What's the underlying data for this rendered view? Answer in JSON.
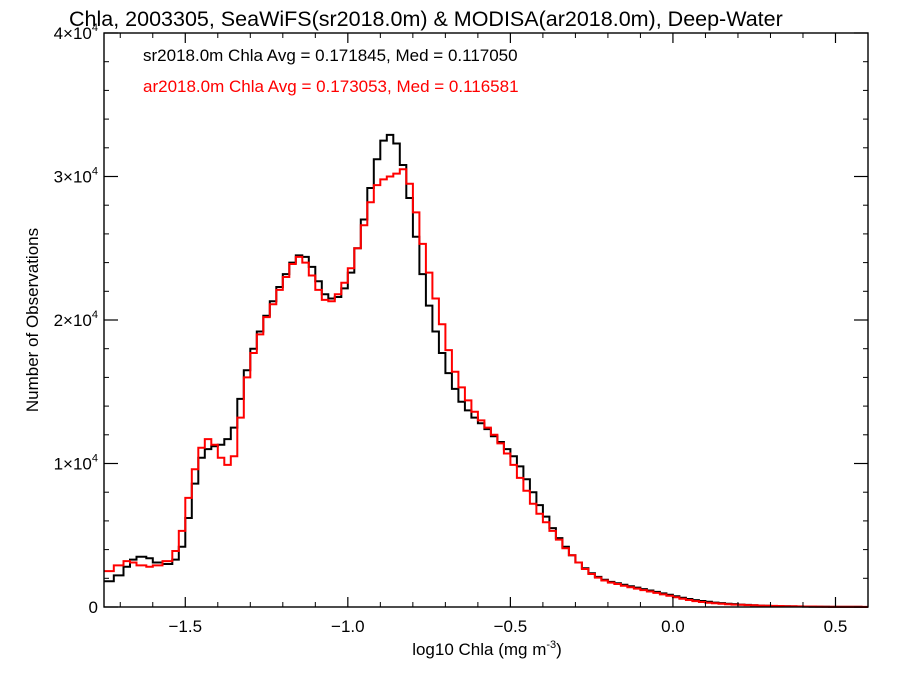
{
  "chart_data": {
    "type": "line",
    "step": true,
    "title": "Chla, 2003305, SeaWiFS(sr2018.0m) & MODISA(ar2018.0m), Deep-Water",
    "xlabel": "log10 Chla (mg m",
    "xlabel_sup": "-3",
    "xlabel_end": ")",
    "ylabel": "Number of Observations",
    "xlim": [
      -1.75,
      0.6
    ],
    "ylim": [
      0,
      40000
    ],
    "x_ticks": [
      {
        "value": -1.5,
        "label": "−1.5"
      },
      {
        "value": -1.0,
        "label": "−1.0"
      },
      {
        "value": -0.5,
        "label": "−0.5"
      },
      {
        "value": 0.0,
        "label": "0.0"
      },
      {
        "value": 0.5,
        "label": "0.5"
      }
    ],
    "y_ticks": [
      {
        "value": 0,
        "base": "0",
        "exp": ""
      },
      {
        "value": 10000,
        "base": "1×10",
        "exp": "4"
      },
      {
        "value": 20000,
        "base": "2×10",
        "exp": "4"
      },
      {
        "value": 30000,
        "base": "3×10",
        "exp": "4"
      },
      {
        "value": 40000,
        "base": "4×10",
        "exp": "4"
      }
    ],
    "annotations": [
      {
        "text": "sr2018.0m Chla Avg = 0.171845, Med = 0.117050",
        "color": "#000000"
      },
      {
        "text": "ar2018.0m Chla Avg = 0.173053, Med = 0.116581",
        "color": "#ff0000"
      }
    ],
    "series": [
      {
        "color": "#000000",
        "points": [
          [
            -1.75,
            1800
          ],
          [
            -1.72,
            2200
          ],
          [
            -1.69,
            2800
          ],
          [
            -1.67,
            3300
          ],
          [
            -1.65,
            3500
          ],
          [
            -1.62,
            3400
          ],
          [
            -1.6,
            3100
          ],
          [
            -1.57,
            3000
          ],
          [
            -1.54,
            3300
          ],
          [
            -1.52,
            4200
          ],
          [
            -1.5,
            6200
          ],
          [
            -1.48,
            8600
          ],
          [
            -1.46,
            10400
          ],
          [
            -1.44,
            11000
          ],
          [
            -1.42,
            11200
          ],
          [
            -1.4,
            11300
          ],
          [
            -1.38,
            11700
          ],
          [
            -1.36,
            12500
          ],
          [
            -1.34,
            14500
          ],
          [
            -1.32,
            16500
          ],
          [
            -1.3,
            18000
          ],
          [
            -1.28,
            19200
          ],
          [
            -1.26,
            20300
          ],
          [
            -1.24,
            21300
          ],
          [
            -1.22,
            22300
          ],
          [
            -1.2,
            23200
          ],
          [
            -1.18,
            24000
          ],
          [
            -1.16,
            24500
          ],
          [
            -1.14,
            24400
          ],
          [
            -1.12,
            23700
          ],
          [
            -1.1,
            22700
          ],
          [
            -1.08,
            21800
          ],
          [
            -1.06,
            21500
          ],
          [
            -1.04,
            21600
          ],
          [
            -1.02,
            22200
          ],
          [
            -1.0,
            23300
          ],
          [
            -0.98,
            25000
          ],
          [
            -0.96,
            27000
          ],
          [
            -0.94,
            29200
          ],
          [
            -0.92,
            31200
          ],
          [
            -0.9,
            32500
          ],
          [
            -0.88,
            32900
          ],
          [
            -0.86,
            32300
          ],
          [
            -0.84,
            30800
          ],
          [
            -0.82,
            28500
          ],
          [
            -0.8,
            25800
          ],
          [
            -0.78,
            23200
          ],
          [
            -0.76,
            21000
          ],
          [
            -0.74,
            19200
          ],
          [
            -0.72,
            17700
          ],
          [
            -0.7,
            16300
          ],
          [
            -0.68,
            15200
          ],
          [
            -0.66,
            14300
          ],
          [
            -0.64,
            13700
          ],
          [
            -0.62,
            13200
          ],
          [
            -0.6,
            12800
          ],
          [
            -0.58,
            12400
          ],
          [
            -0.56,
            11900
          ],
          [
            -0.54,
            11500
          ],
          [
            -0.52,
            11000
          ],
          [
            -0.5,
            10500
          ],
          [
            -0.48,
            9800
          ],
          [
            -0.46,
            8900
          ],
          [
            -0.44,
            8000
          ],
          [
            -0.42,
            7100
          ],
          [
            -0.4,
            6300
          ],
          [
            -0.38,
            5500
          ],
          [
            -0.36,
            4800
          ],
          [
            -0.34,
            4200
          ],
          [
            -0.32,
            3600
          ],
          [
            -0.3,
            3100
          ],
          [
            -0.28,
            2700
          ],
          [
            -0.26,
            2350
          ],
          [
            -0.24,
            2100
          ],
          [
            -0.22,
            1900
          ],
          [
            -0.2,
            1750
          ],
          [
            -0.18,
            1650
          ],
          [
            -0.16,
            1550
          ],
          [
            -0.14,
            1450
          ],
          [
            -0.12,
            1350
          ],
          [
            -0.1,
            1250
          ],
          [
            -0.08,
            1150
          ],
          [
            -0.06,
            1050
          ],
          [
            -0.04,
            950
          ],
          [
            -0.02,
            850
          ],
          [
            0.0,
            750
          ],
          [
            0.02,
            650
          ],
          [
            0.04,
            560
          ],
          [
            0.06,
            480
          ],
          [
            0.08,
            420
          ],
          [
            0.1,
            360
          ],
          [
            0.12,
            310
          ],
          [
            0.14,
            270
          ],
          [
            0.16,
            230
          ],
          [
            0.18,
            200
          ],
          [
            0.2,
            170
          ],
          [
            0.22,
            145
          ],
          [
            0.24,
            120
          ],
          [
            0.26,
            100
          ],
          [
            0.28,
            85
          ],
          [
            0.3,
            70
          ],
          [
            0.32,
            60
          ],
          [
            0.34,
            50
          ],
          [
            0.36,
            40
          ],
          [
            0.38,
            32
          ],
          [
            0.4,
            25
          ],
          [
            0.42,
            20
          ],
          [
            0.44,
            15
          ],
          [
            0.46,
            12
          ],
          [
            0.48,
            10
          ],
          [
            0.5,
            8
          ],
          [
            0.52,
            6
          ],
          [
            0.54,
            5
          ],
          [
            0.56,
            4
          ],
          [
            0.58,
            3
          ],
          [
            0.6,
            2
          ]
        ]
      },
      {
        "color": "#ff0000",
        "points": [
          [
            -1.75,
            2500
          ],
          [
            -1.72,
            2900
          ],
          [
            -1.69,
            3200
          ],
          [
            -1.67,
            3100
          ],
          [
            -1.65,
            2900
          ],
          [
            -1.62,
            2800
          ],
          [
            -1.6,
            2900
          ],
          [
            -1.57,
            3200
          ],
          [
            -1.54,
            3900
          ],
          [
            -1.52,
            5300
          ],
          [
            -1.5,
            7600
          ],
          [
            -1.48,
            9600
          ],
          [
            -1.46,
            11100
          ],
          [
            -1.44,
            11700
          ],
          [
            -1.42,
            11300
          ],
          [
            -1.4,
            10400
          ],
          [
            -1.38,
            9900
          ],
          [
            -1.36,
            10500
          ],
          [
            -1.34,
            13200
          ],
          [
            -1.32,
            16000
          ],
          [
            -1.3,
            17700
          ],
          [
            -1.28,
            19000
          ],
          [
            -1.26,
            20200
          ],
          [
            -1.24,
            21100
          ],
          [
            -1.22,
            22100
          ],
          [
            -1.2,
            23000
          ],
          [
            -1.18,
            23900
          ],
          [
            -1.16,
            24400
          ],
          [
            -1.14,
            24000
          ],
          [
            -1.12,
            23100
          ],
          [
            -1.1,
            22100
          ],
          [
            -1.08,
            21400
          ],
          [
            -1.06,
            21300
          ],
          [
            -1.04,
            21800
          ],
          [
            -1.02,
            22600
          ],
          [
            -1.0,
            23600
          ],
          [
            -0.98,
            25000
          ],
          [
            -0.96,
            26600
          ],
          [
            -0.94,
            28200
          ],
          [
            -0.92,
            29400
          ],
          [
            -0.9,
            29800
          ],
          [
            -0.88,
            30000
          ],
          [
            -0.86,
            30200
          ],
          [
            -0.84,
            30500
          ],
          [
            -0.82,
            29500
          ],
          [
            -0.8,
            27500
          ],
          [
            -0.78,
            25300
          ],
          [
            -0.76,
            23300
          ],
          [
            -0.74,
            21500
          ],
          [
            -0.72,
            19700
          ],
          [
            -0.7,
            17900
          ],
          [
            -0.68,
            16400
          ],
          [
            -0.66,
            15300
          ],
          [
            -0.64,
            14400
          ],
          [
            -0.62,
            13600
          ],
          [
            -0.6,
            13000
          ],
          [
            -0.58,
            12500
          ],
          [
            -0.56,
            12000
          ],
          [
            -0.54,
            11400
          ],
          [
            -0.52,
            10700
          ],
          [
            -0.5,
            9900
          ],
          [
            -0.48,
            9000
          ],
          [
            -0.46,
            8100
          ],
          [
            -0.44,
            7200
          ],
          [
            -0.42,
            6500
          ],
          [
            -0.4,
            5900
          ],
          [
            -0.38,
            5300
          ],
          [
            -0.36,
            4700
          ],
          [
            -0.34,
            4100
          ],
          [
            -0.32,
            3600
          ],
          [
            -0.3,
            3100
          ],
          [
            -0.28,
            2650
          ],
          [
            -0.26,
            2300
          ],
          [
            -0.24,
            2050
          ],
          [
            -0.22,
            1850
          ],
          [
            -0.2,
            1700
          ],
          [
            -0.18,
            1600
          ],
          [
            -0.16,
            1480
          ],
          [
            -0.14,
            1380
          ],
          [
            -0.12,
            1280
          ],
          [
            -0.1,
            1180
          ],
          [
            -0.08,
            1080
          ],
          [
            -0.06,
            980
          ],
          [
            -0.04,
            880
          ],
          [
            -0.02,
            780
          ],
          [
            0.0,
            680
          ],
          [
            0.02,
            580
          ],
          [
            0.04,
            490
          ],
          [
            0.06,
            410
          ],
          [
            0.08,
            350
          ],
          [
            0.1,
            300
          ],
          [
            0.12,
            260
          ],
          [
            0.14,
            225
          ],
          [
            0.16,
            195
          ],
          [
            0.18,
            170
          ],
          [
            0.2,
            150
          ],
          [
            0.22,
            130
          ],
          [
            0.24,
            115
          ],
          [
            0.26,
            100
          ],
          [
            0.28,
            88
          ],
          [
            0.3,
            77
          ],
          [
            0.32,
            67
          ],
          [
            0.34,
            58
          ],
          [
            0.36,
            50
          ],
          [
            0.38,
            43
          ],
          [
            0.4,
            37
          ],
          [
            0.42,
            32
          ],
          [
            0.44,
            28
          ],
          [
            0.46,
            24
          ],
          [
            0.48,
            21
          ],
          [
            0.5,
            18
          ],
          [
            0.52,
            15
          ],
          [
            0.54,
            13
          ],
          [
            0.56,
            11
          ],
          [
            0.58,
            9
          ],
          [
            0.6,
            8
          ]
        ]
      }
    ]
  }
}
